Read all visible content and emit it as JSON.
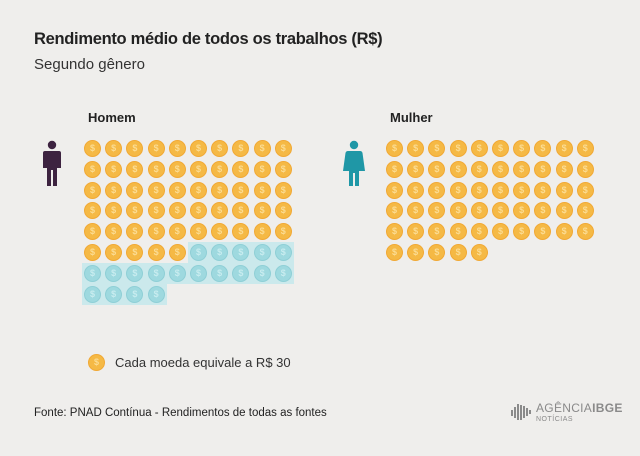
{
  "title": "Rendimento médio de todos os trabalhos (R$)",
  "subtitle": "Segundo gênero",
  "chart_data": {
    "type": "pictograph",
    "unit_value": 30,
    "legend": "Cada moeda equivale a R$ 30",
    "coin_glyph": "$",
    "colors": {
      "coin": "#f5b945",
      "coin_highlight": "#9ed9df",
      "men_icon": "#3d2340",
      "women_icon": "#1f97a6"
    },
    "groups": [
      {
        "name": "Homem",
        "coins": 74,
        "highlighted": 19,
        "icon": "man-icon"
      },
      {
        "name": "Mulher",
        "coins": 55,
        "highlighted": 0,
        "icon": "woman-icon"
      }
    ]
  },
  "source": "Fonte: PNAD Contínua - Rendimentos de todas as fontes",
  "logo": {
    "brand_light": "AGÊNCIA",
    "brand_bold": "IBGE",
    "sub": "NOTÍCIAS"
  }
}
